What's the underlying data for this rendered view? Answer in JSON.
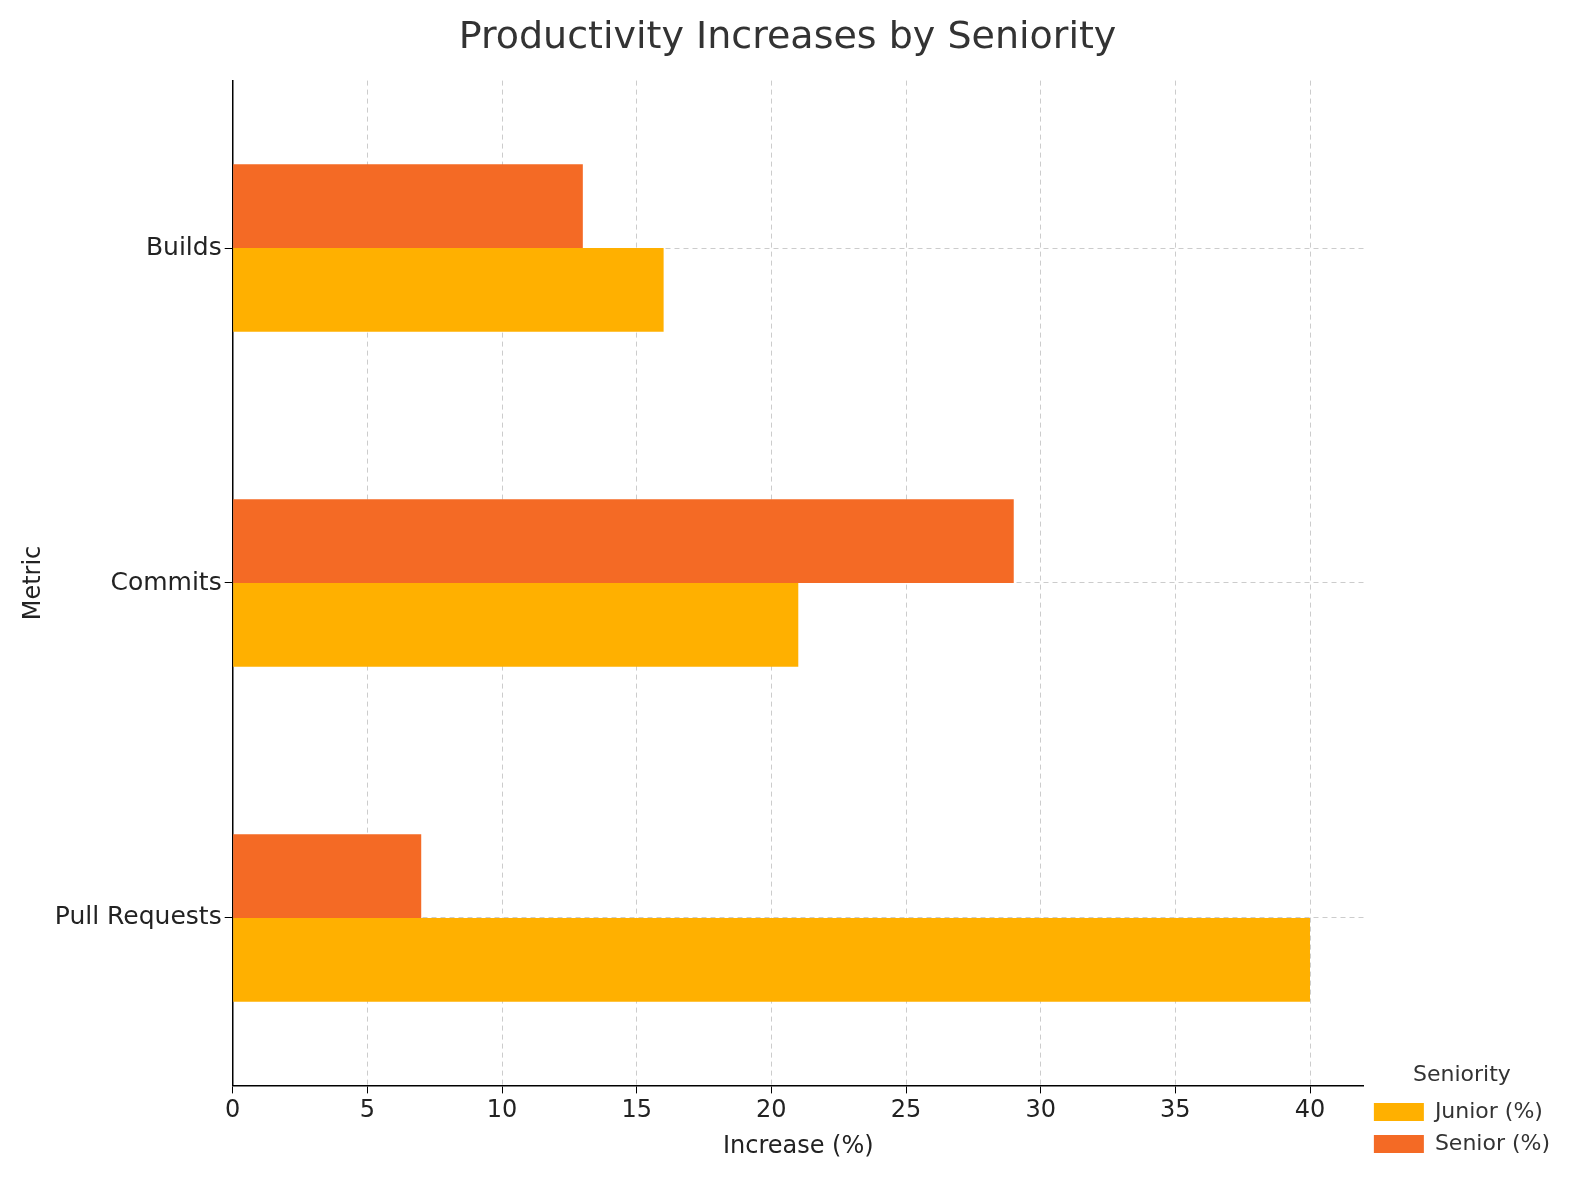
{
  "chart_data": {
    "type": "bar",
    "orientation": "horizontal",
    "title": "Productivity Increases by Seniority",
    "x_label": "Increase (%)",
    "y_label": "Metric",
    "categories": [
      "Builds",
      "Commits",
      "Pull Requests"
    ],
    "series": [
      {
        "name": "Junior (%)",
        "color": "#ffb000",
        "values": [
          16,
          21,
          40
        ]
      },
      {
        "name": "Senior (%)",
        "color": "#f46a25",
        "values": [
          13,
          29,
          7
        ]
      }
    ],
    "xlim": [
      0,
      42
    ],
    "xticks": [
      0,
      5,
      10,
      15,
      20,
      25,
      30,
      35,
      40
    ],
    "grid": true,
    "legend": "lower right",
    "legend_title": "Seniority"
  }
}
